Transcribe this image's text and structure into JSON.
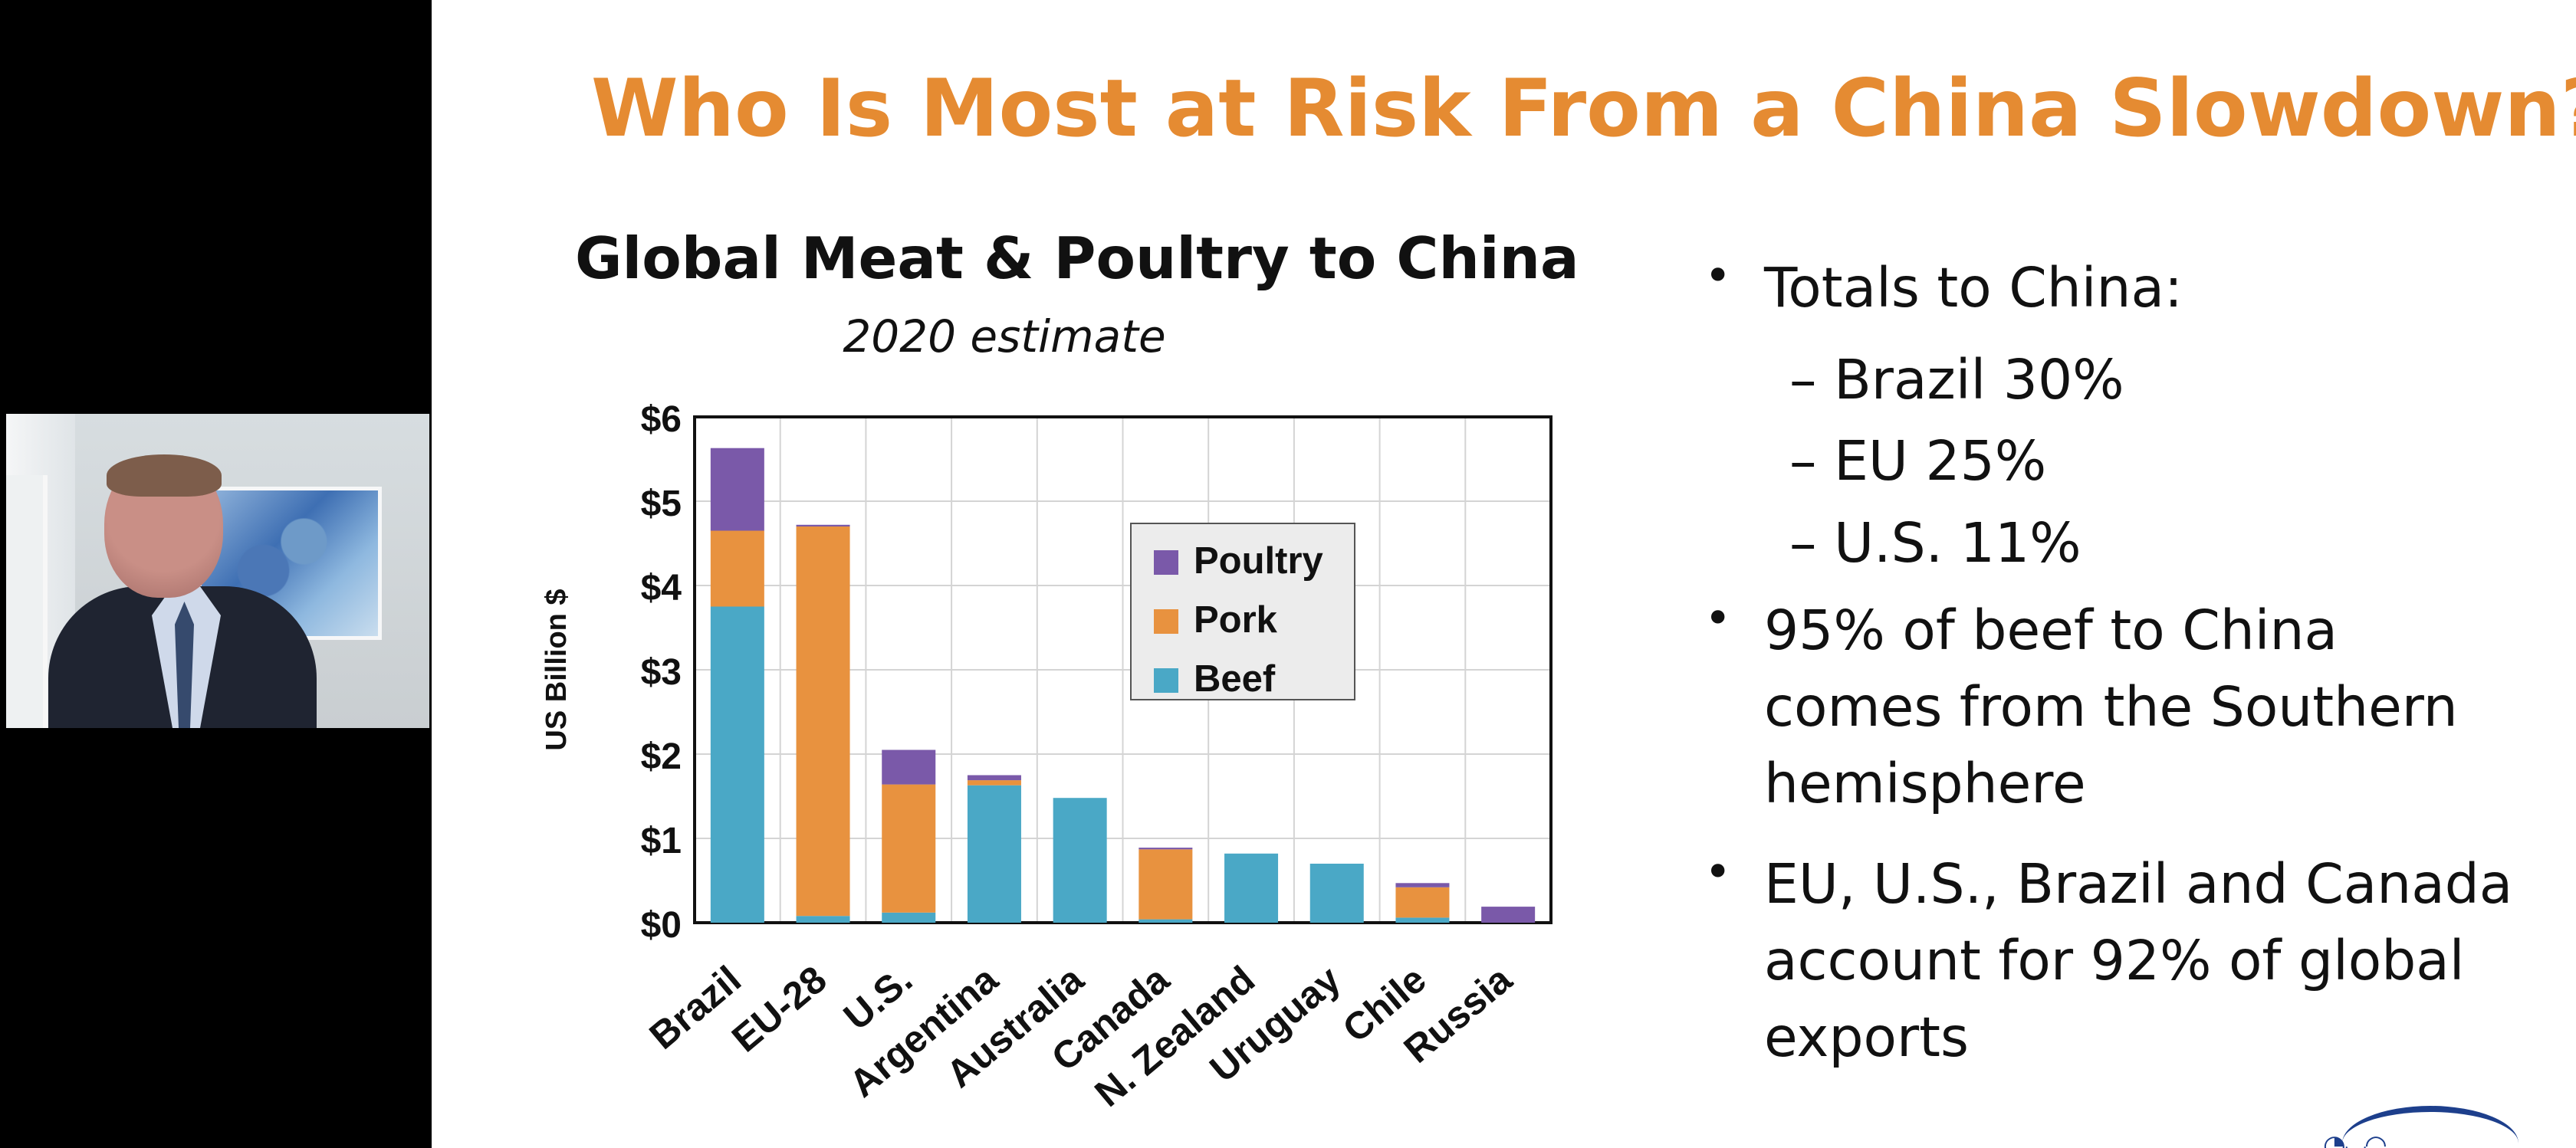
{
  "slide": {
    "title": "Who Is Most at Risk From a China Slowdown?"
  },
  "chart_data": {
    "type": "bar",
    "stacked": true,
    "title": "Global Meat & Poultry to China",
    "subtitle": "2020 estimate",
    "xlabel": "",
    "ylabel": "US Billion $",
    "categories": [
      "Brazil",
      "EU-28",
      "U.S.",
      "Argentina",
      "Australia",
      "Canada",
      "N. Zealand",
      "Uruguay",
      "Chile",
      "Russia"
    ],
    "series": [
      {
        "name": "Beef",
        "color": "#4aa8c6",
        "values": [
          3.75,
          0.08,
          0.12,
          1.63,
          1.48,
          0.04,
          0.82,
          0.7,
          0.06,
          0.0
        ]
      },
      {
        "name": "Pork",
        "color": "#e8923f",
        "values": [
          0.9,
          4.62,
          1.52,
          0.06,
          0.0,
          0.83,
          0.0,
          0.0,
          0.36,
          0.0
        ]
      },
      {
        "name": "Poultry",
        "color": "#7a59a9",
        "values": [
          0.98,
          0.02,
          0.41,
          0.06,
          0.0,
          0.02,
          0.0,
          0.0,
          0.05,
          0.19
        ]
      }
    ],
    "y_ticks": [
      0,
      1,
      2,
      3,
      4,
      5,
      6
    ],
    "y_tick_labels": [
      "$0",
      "$1",
      "$2",
      "$3",
      "$4",
      "$5",
      "$6"
    ],
    "ylim": [
      0,
      6
    ],
    "grid": true,
    "legend_position": "upper-center",
    "legend_order": [
      "Poultry",
      "Pork",
      "Beef"
    ]
  },
  "bullets": {
    "totals_label": "Totals to China:",
    "brazil_share": "– Brazil 30%",
    "eu_share": "– EU 25%",
    "us_share": "– U.S. 11%",
    "beef_line_1": "95% of beef to China",
    "beef_line_2": "comes from the Southern",
    "beef_line_3": "hemisphere",
    "exports_line_1": "EU, U.S., Brazil and Canada",
    "exports_line_2": "account for 92% of global",
    "exports_line_3": "exports",
    "dot": "•"
  },
  "colors": {
    "title_orange": "#e58b32",
    "beef": "#4aa8c6",
    "pork": "#e8923f",
    "poultry": "#7a59a9"
  }
}
